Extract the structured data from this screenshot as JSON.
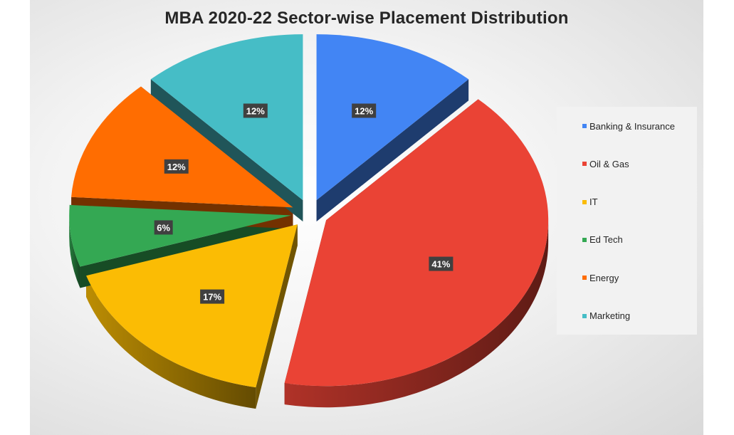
{
  "chart_data": {
    "type": "pie",
    "title": "MBA 2020-22  Sector-wise Placement Distribution",
    "categories": [
      "Banking & Insurance",
      "Oil & Gas",
      "IT",
      "Ed Tech",
      "Energy",
      "Marketing"
    ],
    "values": [
      12,
      41,
      17,
      6,
      12,
      12
    ],
    "labels": [
      "12%",
      "41%",
      "17%",
      "6%",
      "12%",
      "12%"
    ],
    "colors": [
      "#4285F4",
      "#EA4335",
      "#FBBC04",
      "#34A853",
      "#FF6D01",
      "#46BDC6"
    ],
    "exploded": true,
    "legend_position": "right"
  }
}
